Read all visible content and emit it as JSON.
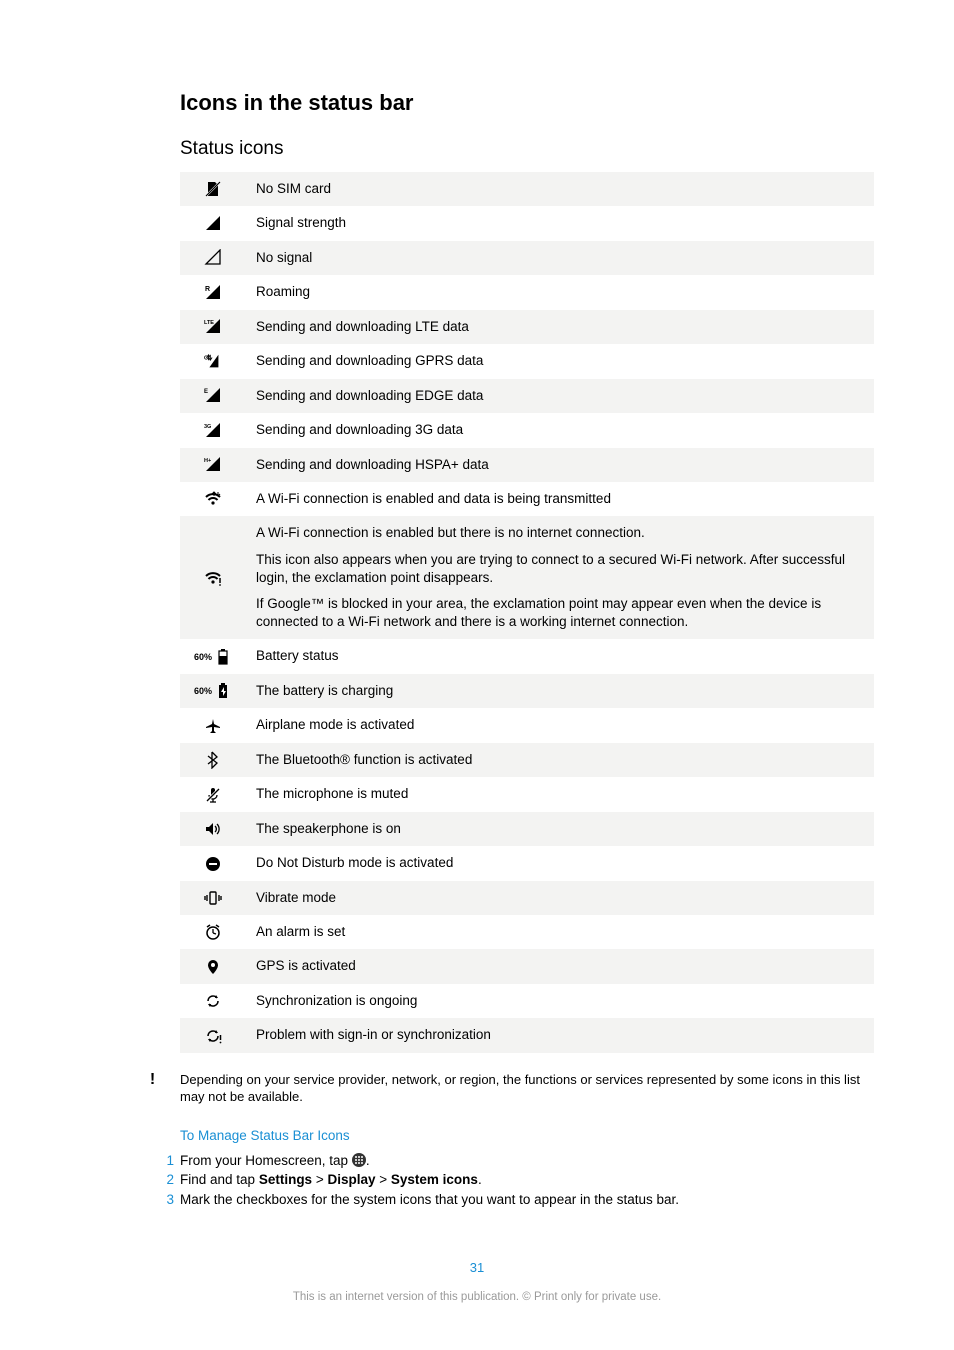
{
  "section_title": "Icons in the status bar",
  "subsection_title": "Status icons",
  "icons": [
    {
      "svg": "no-sim",
      "desc": [
        "No SIM card"
      ]
    },
    {
      "svg": "signal",
      "desc": [
        "Signal strength"
      ]
    },
    {
      "svg": "no-signal",
      "desc": [
        "No signal"
      ]
    },
    {
      "svg": "roaming",
      "desc": [
        "Roaming"
      ]
    },
    {
      "svg": "lte",
      "desc": [
        "Sending and downloading LTE data"
      ]
    },
    {
      "svg": "gprs",
      "desc": [
        "Sending and downloading GPRS data"
      ]
    },
    {
      "svg": "edge",
      "desc": [
        "Sending and downloading EDGE data"
      ]
    },
    {
      "svg": "3g",
      "desc": [
        "Sending and downloading 3G data"
      ]
    },
    {
      "svg": "hspa",
      "desc": [
        "Sending and downloading HSPA+ data"
      ]
    },
    {
      "svg": "wifi",
      "desc": [
        "A Wi-Fi connection is enabled and data is being transmitted"
      ]
    },
    {
      "svg": "wifi-excl",
      "desc": [
        "A Wi-Fi connection is enabled but there is no internet connection.",
        "This icon also appears when you are trying to connect to a secured Wi-Fi network. After successful login, the exclamation point disappears.",
        "If Google™ is blocked in your area, the exclamation point may appear even when the device is connected to a Wi-Fi network and there is a working internet connection."
      ]
    },
    {
      "svg": "battery",
      "prefix": "60%",
      "desc": [
        "Battery status"
      ]
    },
    {
      "svg": "battery-charge",
      "prefix": "60%",
      "desc": [
        "The battery is charging"
      ]
    },
    {
      "svg": "airplane",
      "desc": [
        "Airplane mode is activated"
      ]
    },
    {
      "svg": "bluetooth",
      "desc": [
        "The Bluetooth® function is activated"
      ]
    },
    {
      "svg": "mic-mute",
      "desc": [
        "The microphone is muted"
      ]
    },
    {
      "svg": "speaker",
      "desc": [
        "The speakerphone is on"
      ]
    },
    {
      "svg": "dnd",
      "desc": [
        "Do Not Disturb mode is activated"
      ]
    },
    {
      "svg": "vibrate",
      "desc": [
        "Vibrate mode"
      ]
    },
    {
      "svg": "alarm",
      "desc": [
        "An alarm is set"
      ]
    },
    {
      "svg": "gps",
      "desc": [
        "GPS is activated"
      ]
    },
    {
      "svg": "sync",
      "desc": [
        "Synchronization is ongoing"
      ]
    },
    {
      "svg": "sync-excl",
      "desc": [
        "Problem with sign-in or synchronization"
      ]
    }
  ],
  "note_text": "Depending on your service provider, network, or region, the functions or services represented by some icons in this list may not be available.",
  "manage_title": "To Manage Status Bar Icons",
  "steps": [
    {
      "parts": [
        {
          "t": "From your Homescreen, tap "
        },
        {
          "icon": "apps"
        },
        {
          "t": "."
        }
      ]
    },
    {
      "parts": [
        {
          "t": "Find and tap "
        },
        {
          "b": "Settings"
        },
        {
          "t": " > "
        },
        {
          "b": "Display"
        },
        {
          "t": " > "
        },
        {
          "b": "System icons"
        },
        {
          "t": "."
        }
      ]
    },
    {
      "parts": [
        {
          "t": "Mark the checkboxes for the system icons that you want to appear in the status bar."
        }
      ]
    }
  ],
  "page_number": "31",
  "footer_text": "This is an internet version of this publication. © Print only for private use.",
  "colors": {
    "link": "#1a8fd4",
    "row_odd_bg": "#f3f3f2",
    "text": "#000000",
    "muted": "#9a9a9a"
  }
}
